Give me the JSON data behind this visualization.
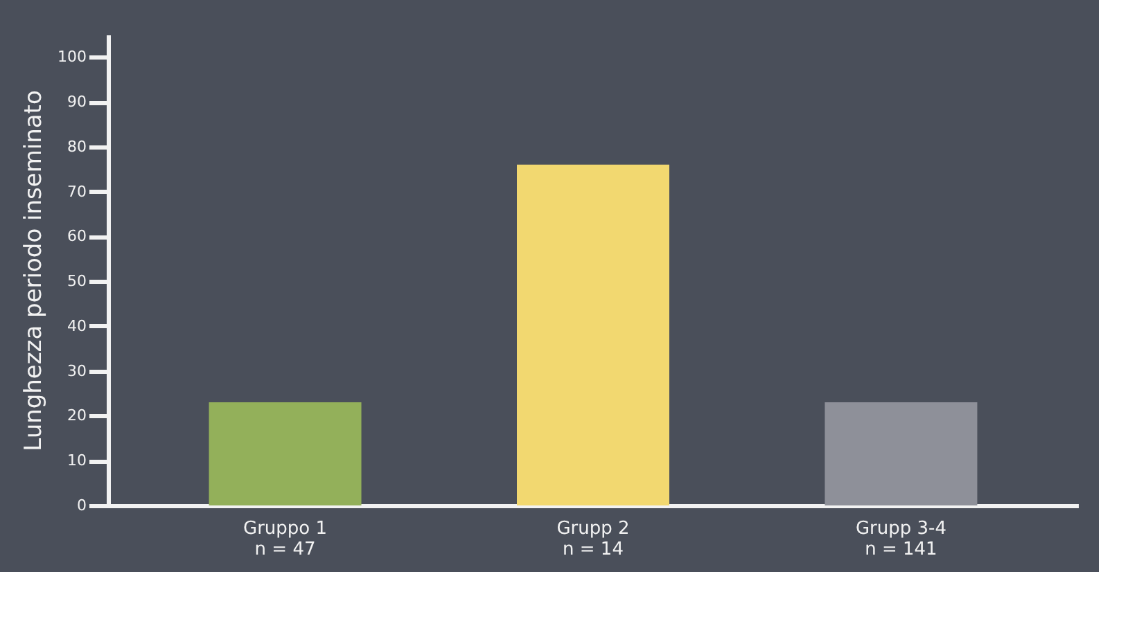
{
  "chart_data": {
    "type": "bar",
    "ylabel": "Lunghezza periodo inseminato",
    "categories": [
      "Gruppo 1\nn = 47",
      "Grupp 2\nn = 14",
      "Grupp 3-4\nn = 141"
    ],
    "values": [
      23,
      76,
      23
    ],
    "colors": [
      "#93b05a",
      "#f2d870",
      "#8e9099"
    ],
    "ylim": [
      0,
      105
    ],
    "yticks": [
      0,
      10,
      20,
      30,
      40,
      50,
      60,
      70,
      80,
      90,
      100
    ],
    "grid": false
  }
}
